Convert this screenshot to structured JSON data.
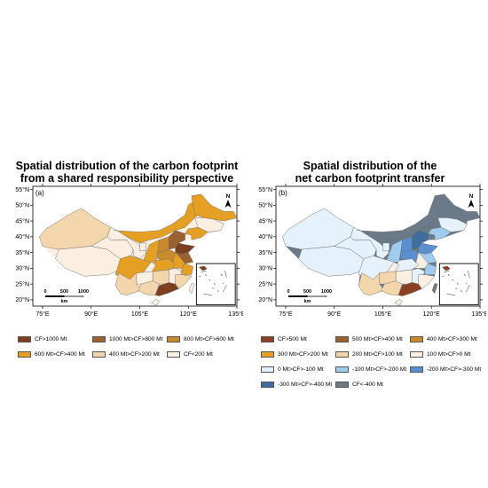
{
  "panel_a": {
    "title_line1": "Spatial distribution of the carbon footprint",
    "title_line2": "from a shared responsibility perspective",
    "panel_label": "(a)",
    "north": "N",
    "scale": {
      "t0": "0",
      "t1": "500",
      "t2": "1000",
      "unit": "km"
    },
    "lat_ticks": [
      "55°N",
      "50°N",
      "45°N",
      "40°N",
      "35°N",
      "30°N",
      "25°N",
      "20°N"
    ],
    "lon_ticks": [
      "75°E",
      "90°E",
      "105°E",
      "120°E",
      "135°E"
    ],
    "legend": [
      {
        "label": "CF>1000 Mt",
        "color": "#7e3f1f"
      },
      {
        "label": "1000 Mt>CF>800 Mt",
        "color": "#9c6131"
      },
      {
        "label": "800 Mt>CF>600 Mt",
        "color": "#c98a2c"
      },
      {
        "label": "600 Mt>CF>400 Mt",
        "color": "#e59f22"
      },
      {
        "label": "400 Mt>CF>200 Mt",
        "color": "#f4d6ac"
      },
      {
        "label": "CF<200 Mt",
        "color": "#fbefe1"
      }
    ]
  },
  "panel_b": {
    "title_line1": "Spatial distribution of the",
    "title_line2": "net carbon footprint transfer",
    "panel_label": "(b)",
    "north": "N",
    "scale": {
      "t0": "0",
      "t1": "500",
      "t2": "1000",
      "unit": "km"
    },
    "lat_ticks": [
      "55°N",
      "50°N",
      "45°N",
      "40°N",
      "35°N",
      "30°N",
      "25°N",
      "20°N"
    ],
    "lon_ticks": [
      "75°E",
      "90°E",
      "105°E",
      "120°E",
      "135°E"
    ],
    "legend": [
      {
        "label": "CF>500 Mt",
        "color": "#8c3f22"
      },
      {
        "label": "500 Mt>CF>400 Mt",
        "color": "#9c6131"
      },
      {
        "label": "400 Mt>CF>300 Mt",
        "color": "#c98a2c"
      },
      {
        "label": "300 Mt>CF>200 Mt",
        "color": "#e59f22"
      },
      {
        "label": "200 Mt>CF>100 Mt",
        "color": "#f4d6ac"
      },
      {
        "label": "100 Mt>CF>0 Mt",
        "color": "#fbefe1"
      },
      {
        "label": "0 Mt>CF>-100 Mt",
        "color": "#e6f2fb"
      },
      {
        "label": "-100 Mt>CF>-200 Mt",
        "color": "#9fcbee"
      },
      {
        "label": "-200 Mt>CF>-300 Mt",
        "color": "#5b8fd0"
      },
      {
        "label": "-300 Mt>CF>-400 Mt",
        "color": "#3f6e9e"
      },
      {
        "label": "CF<-400 Mt",
        "color": "#6b7a88"
      }
    ]
  }
}
